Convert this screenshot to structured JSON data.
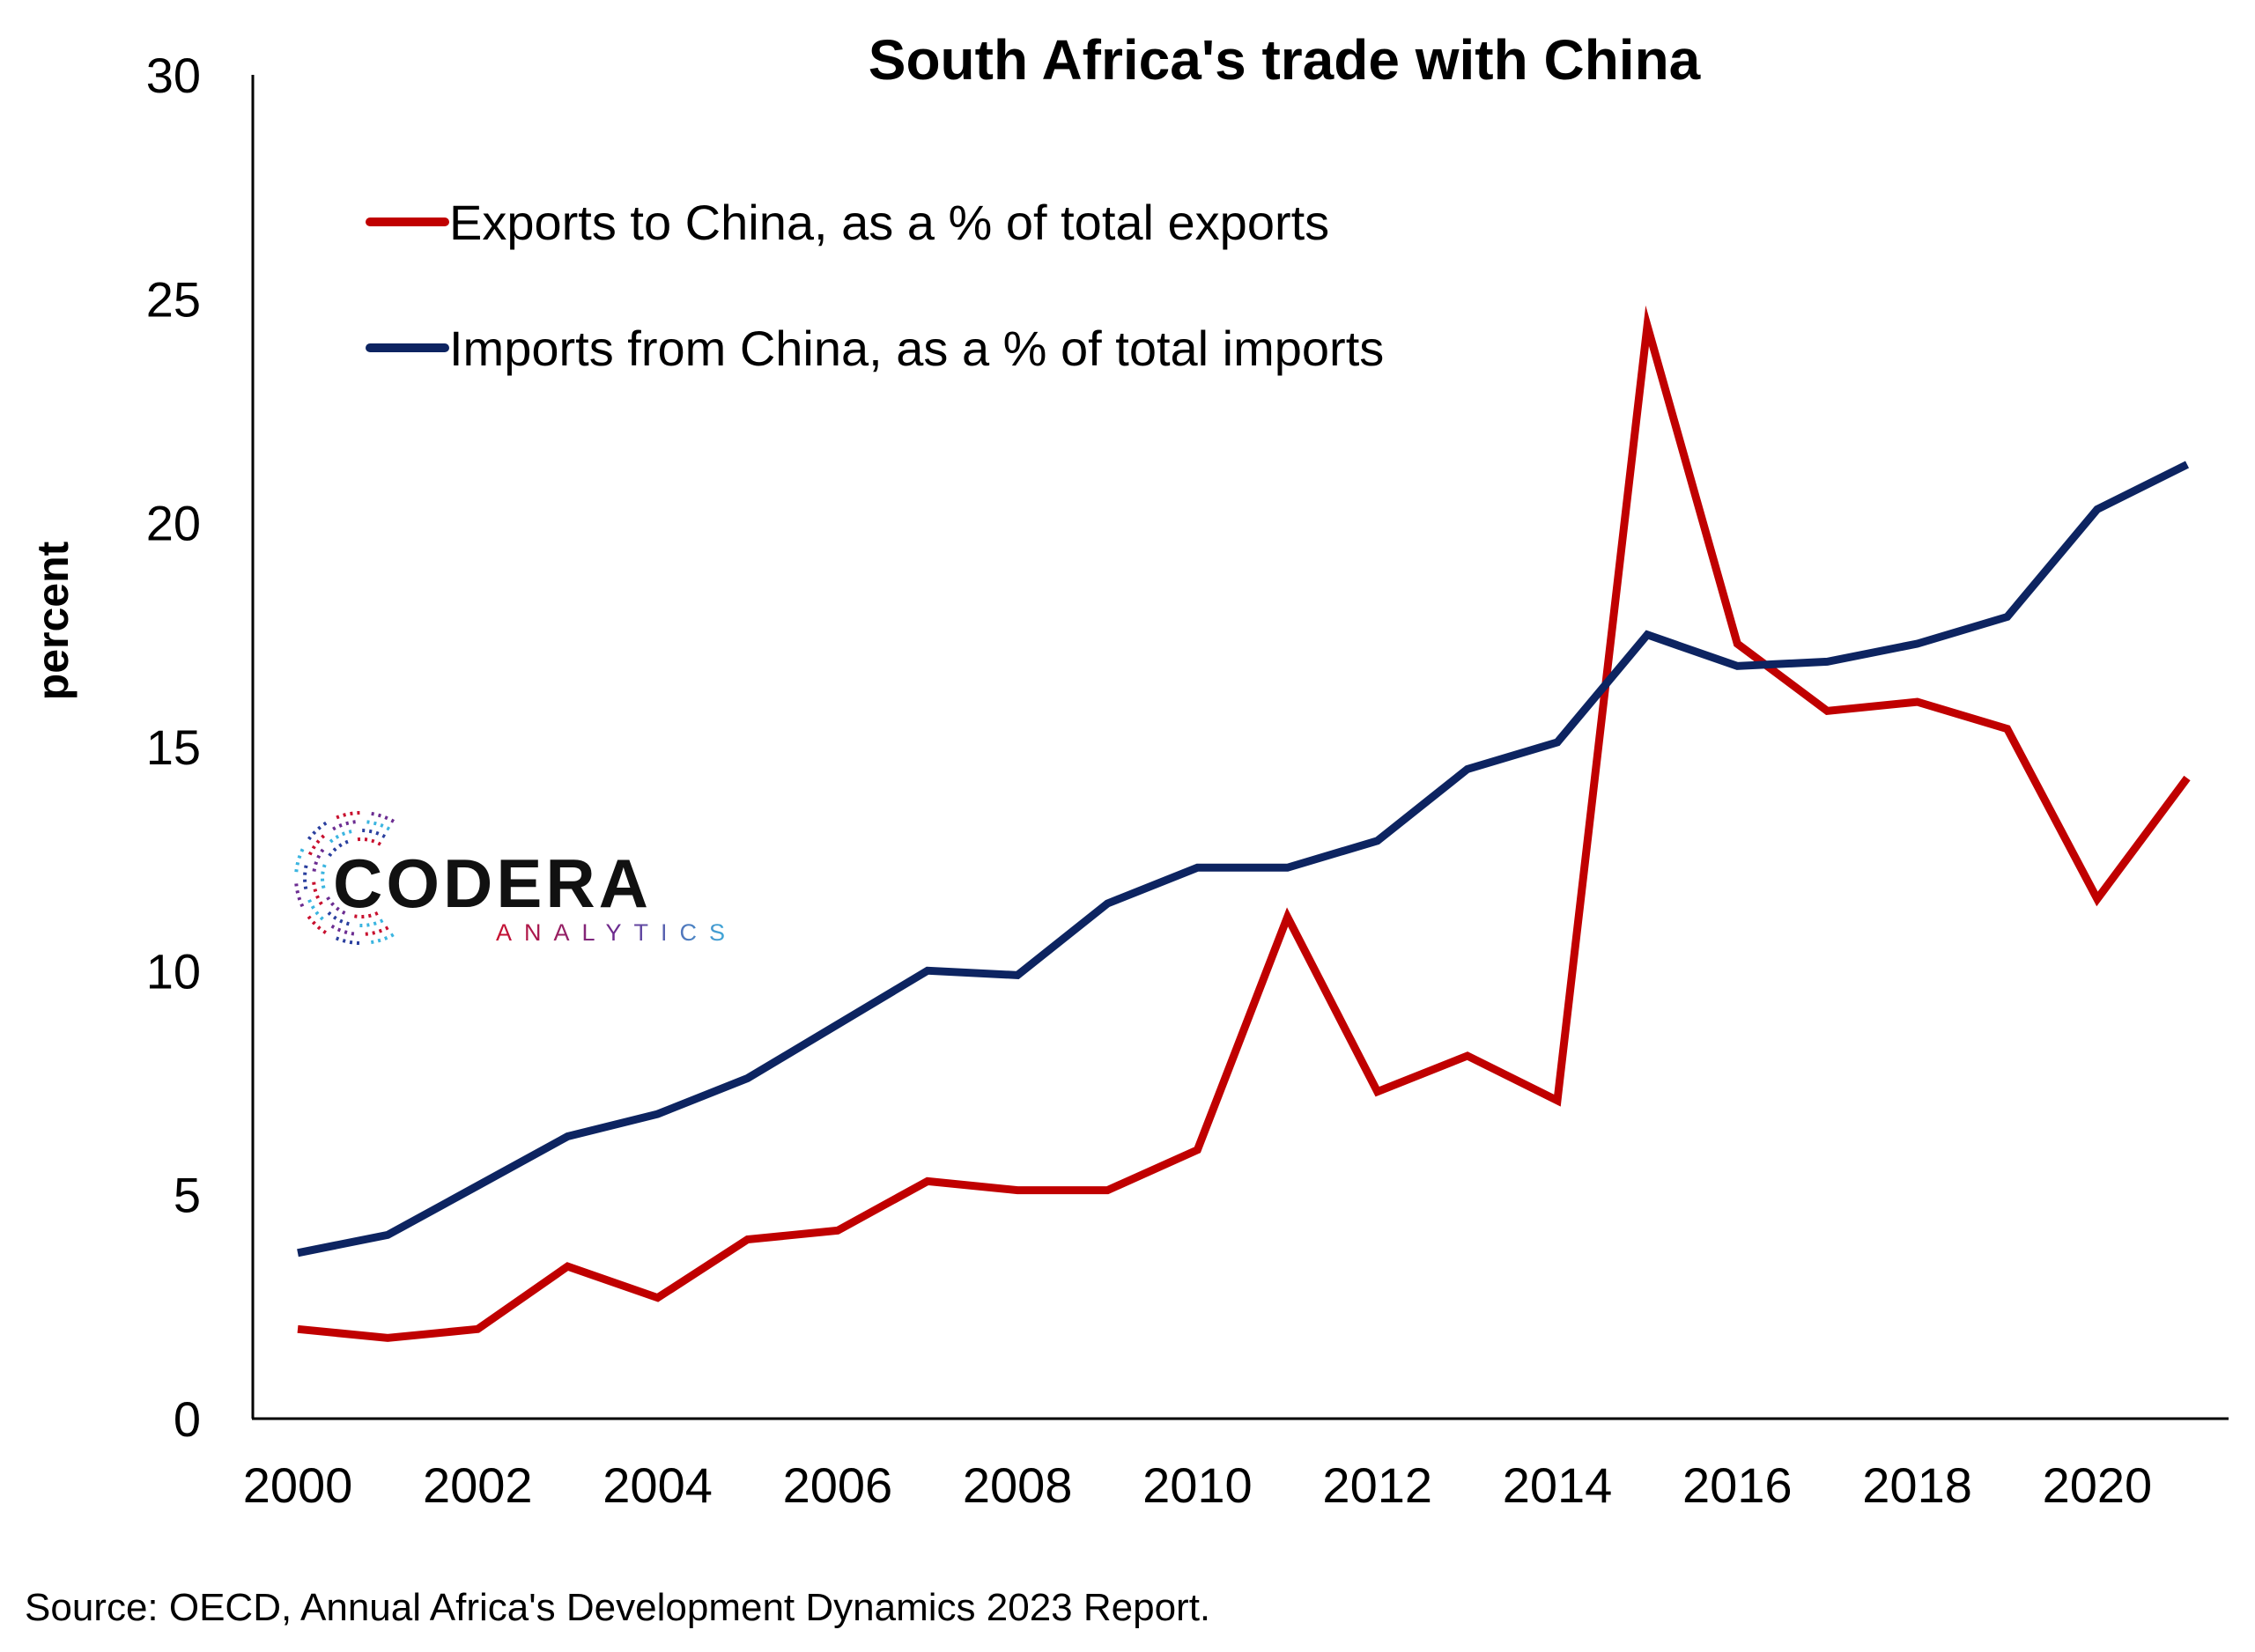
{
  "chart_data": {
    "type": "line",
    "title": "South Africa's trade with China",
    "ylabel": "percent",
    "xlabel": "",
    "source": "Source: OECD, Annual Africa's Development Dynamics 2023 Report.",
    "ylim": [
      0,
      30
    ],
    "xlim": [
      2000,
      2021
    ],
    "y_ticks": [
      "0",
      "5",
      "10",
      "15",
      "20",
      "25",
      "30"
    ],
    "x_ticks": [
      "2000",
      "2002",
      "2004",
      "2006",
      "2008",
      "2010",
      "2012",
      "2014",
      "2016",
      "2018",
      "2020"
    ],
    "grid": false,
    "legend_position": "top-left",
    "x": [
      2000,
      2001,
      2002,
      2003,
      2004,
      2005,
      2006,
      2007,
      2008,
      2009,
      2010,
      2011,
      2012,
      2013,
      2014,
      2015,
      2016,
      2017,
      2018,
      2019,
      2020,
      2021
    ],
    "series": [
      {
        "name": "Exports to China, as a % of total exports",
        "color": "#c00000",
        "values": [
          2.0,
          1.8,
          2.0,
          3.4,
          2.7,
          4.0,
          4.2,
          5.3,
          5.1,
          5.1,
          6.0,
          11.2,
          7.3,
          8.1,
          7.1,
          24.4,
          17.3,
          15.8,
          16.0,
          15.4,
          11.6,
          14.3
        ]
      },
      {
        "name": "Imports from China, as a % of total imports",
        "color": "#0d2461",
        "values": [
          3.7,
          4.1,
          5.2,
          6.3,
          6.8,
          7.6,
          8.8,
          10.0,
          9.9,
          11.5,
          12.3,
          12.3,
          12.9,
          14.5,
          15.1,
          17.5,
          16.8,
          16.9,
          17.3,
          17.9,
          20.3,
          21.3
        ]
      }
    ]
  },
  "logo": {
    "name": "CODERA",
    "subtitle": "ANALYTICS",
    "colors": [
      "#c8102e",
      "#2a3f9e",
      "#3bb5e0",
      "#6b2c91"
    ]
  }
}
